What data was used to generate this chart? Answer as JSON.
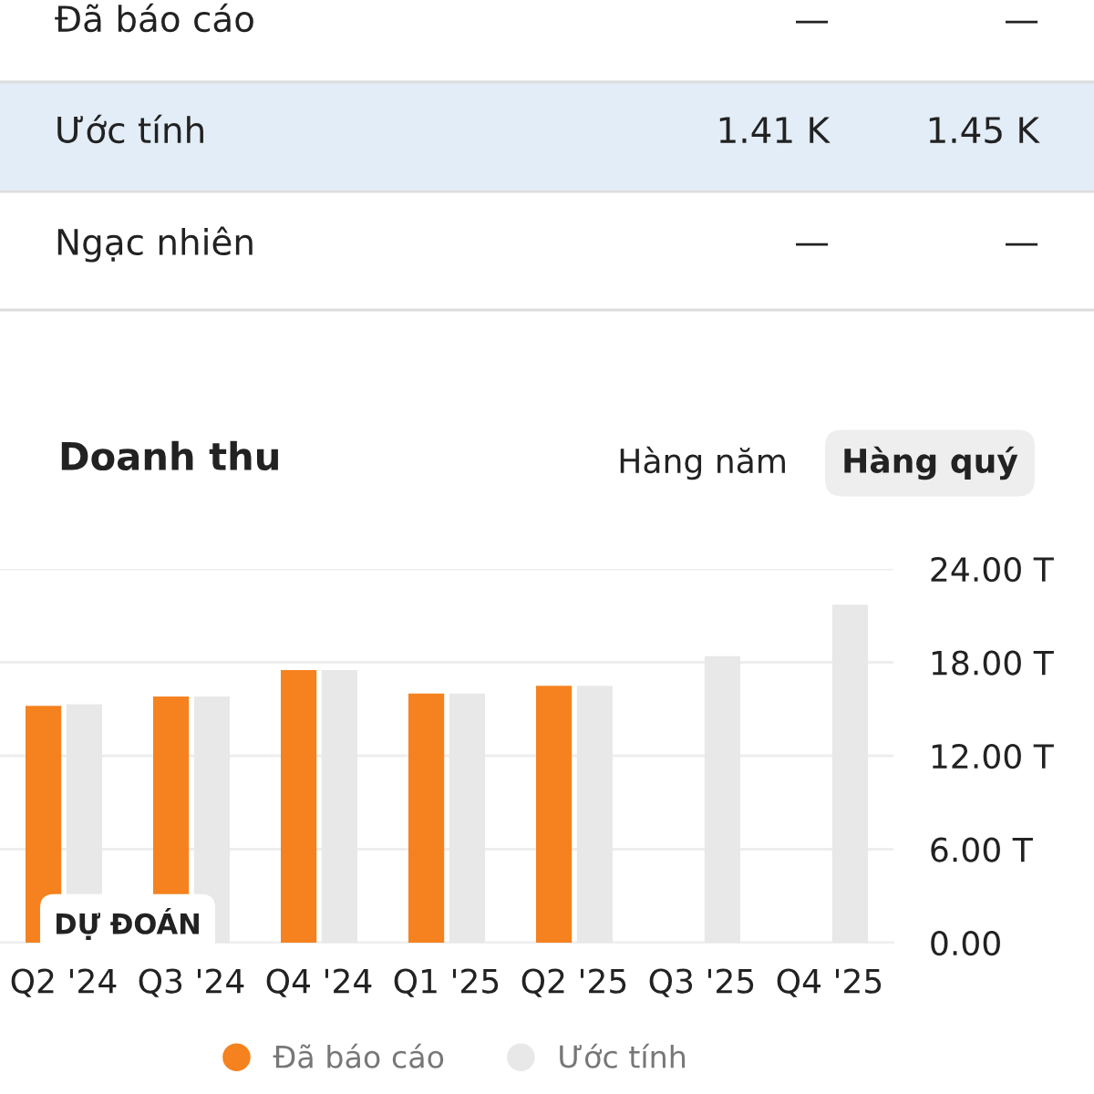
{
  "chart_data": {
    "type": "bar",
    "title": "Doanh thu",
    "annotations": [
      "Đã báo cáo",
      "—",
      "—",
      "Ước tính",
      "1.41 K",
      "1.45 K",
      "Ngạc nhiên",
      "—",
      "—",
      "Hàng năm",
      "Hàng quý",
      "DỰ ĐOÁN"
    ],
    "categories": [
      "Q2 '24",
      "Q3 '24",
      "Q4 '24",
      "Q1 '25",
      "Q2 '25",
      "Q3 '25",
      "Q4 '25"
    ],
    "series": [
      {
        "name": "Đã báo cáo",
        "color": "#f5821f",
        "values": [
          15.2,
          15.8,
          17.5,
          16.0,
          16.5,
          null,
          null
        ]
      },
      {
        "name": "Ước tính",
        "color": "#e8e8e8",
        "values": [
          15.3,
          15.8,
          17.5,
          16.0,
          16.5,
          18.4,
          21.7
        ]
      }
    ],
    "ylim": [
      0,
      24
    ],
    "yticks": [
      {
        "value": 0,
        "label": "0.00"
      },
      {
        "value": 6,
        "label": "6.00 T"
      },
      {
        "value": 12,
        "label": "12.00 T"
      },
      {
        "value": 18,
        "label": "18.00 T"
      },
      {
        "value": 24,
        "label": "24.00 T"
      }
    ],
    "grid": "y",
    "legend": "bottom"
  }
}
